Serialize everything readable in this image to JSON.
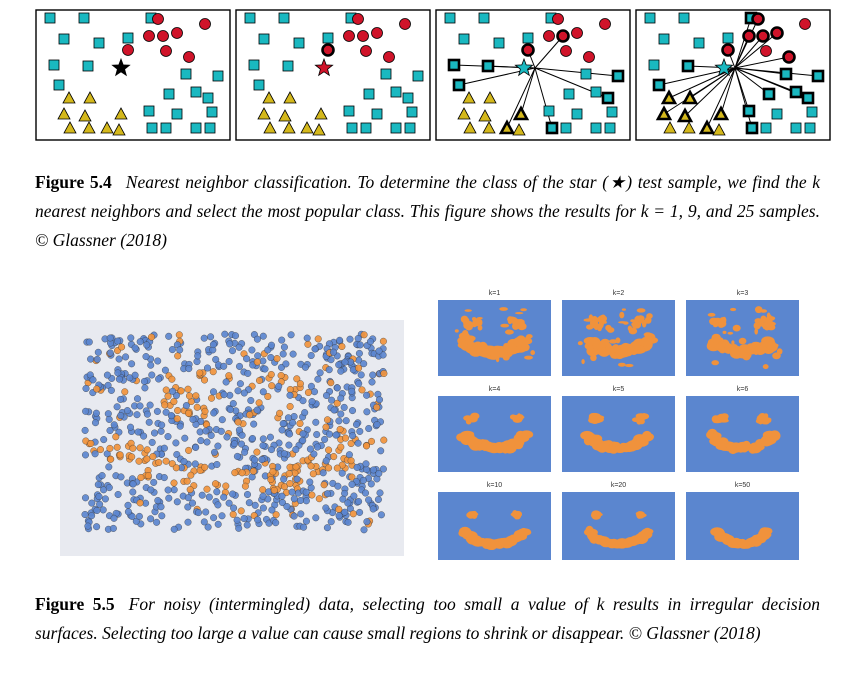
{
  "figure_5_4": {
    "label": "Figure 5.4",
    "caption": "Nearest neighbor classification. To determine the class of the star (★) test sample, we find the k nearest neighbors and select the most popular class. This figure shows the results for k = 1, 9, and 25 samples. © Glassner (2018)",
    "colors": {
      "square": "#1ab8c0",
      "circle": "#d0142a",
      "triangle": "#d4b81c",
      "star": "#000000",
      "star_red": "#d0142a"
    },
    "icons": [
      "square-marker",
      "circle-marker",
      "triangle-marker",
      "star-marker"
    ]
  },
  "figure_5_5": {
    "label": "Figure 5.5",
    "caption": "For noisy (intermingled) data, selecting too small a value of k results in irregular decision surfaces. Selecting too large a value can cause small regions to shrink or disappear. © Glassner (2018)",
    "colors": {
      "blue": "#5b86cf",
      "orange": "#f0923c",
      "scatter_bg": "#e8eaf0"
    },
    "panel_titles": [
      "k=1",
      "k=2",
      "k=3",
      "k=4",
      "k=5",
      "k=6",
      "k=10",
      "k=20",
      "k=50"
    ]
  }
}
